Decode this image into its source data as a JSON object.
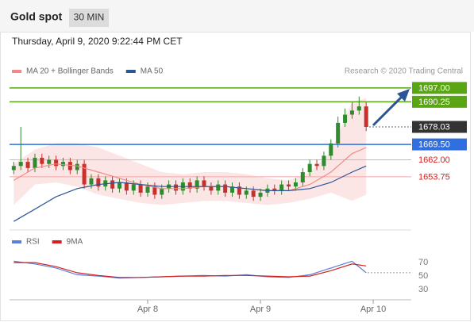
{
  "header": {
    "title": "Gold spot",
    "timeframe": "30 MIN",
    "date": "Thursday, April 9, 2020 9:22:44 PM CET",
    "credit": "Research © 2020 Trading Central"
  },
  "chart_data": [
    {
      "type": "candlestick",
      "up_color": "#2e8b2e",
      "down_color": "#c9302c",
      "x": [
        -28.5,
        -27,
        -25.5,
        -24,
        -22.5,
        -21,
        -19.5,
        -18,
        -16.5,
        -15,
        -13.5,
        -12,
        -10.5,
        -9,
        -7.5,
        -6,
        -4.5,
        -3,
        -1.5,
        0,
        1.5,
        3,
        4.5,
        6,
        7.5,
        9,
        10.5,
        12,
        13.5,
        15,
        16.5,
        18,
        19.5,
        21,
        22.5,
        24,
        25.5,
        27,
        28.5,
        30,
        31.5,
        33,
        34.5,
        36,
        37.5,
        39,
        40.5,
        42,
        43.5,
        45,
        46.5
      ],
      "open": [
        1657,
        1659,
        1661,
        1658,
        1663,
        1660,
        1662,
        1659,
        1661,
        1657,
        1660,
        1650,
        1653,
        1649,
        1652,
        1648,
        1651,
        1647,
        1650,
        1646,
        1649,
        1645,
        1648,
        1650,
        1647,
        1651,
        1648,
        1652,
        1649,
        1647,
        1650,
        1646,
        1649,
        1645,
        1647,
        1644,
        1646,
        1648,
        1647,
        1650,
        1649,
        1651,
        1656,
        1660,
        1659,
        1664,
        1670,
        1680,
        1684,
        1686,
        1688
      ],
      "high": [
        1661,
        1678,
        1663,
        1665,
        1665,
        1664,
        1664,
        1663,
        1663,
        1662,
        1662,
        1655,
        1655,
        1654,
        1654,
        1653,
        1653,
        1652,
        1652,
        1651,
        1651,
        1650,
        1652,
        1652,
        1653,
        1653,
        1654,
        1654,
        1651,
        1652,
        1652,
        1651,
        1651,
        1649,
        1649,
        1648,
        1650,
        1650,
        1652,
        1652,
        1653,
        1658,
        1662,
        1662,
        1666,
        1672,
        1683,
        1687,
        1690,
        1692.8,
        1690
      ],
      "low": [
        1655,
        1657,
        1656,
        1656,
        1658,
        1658,
        1657,
        1657,
        1655,
        1655,
        1648,
        1648,
        1647,
        1647,
        1646,
        1646,
        1645,
        1645,
        1644,
        1644,
        1643,
        1643,
        1646,
        1645,
        1645,
        1646,
        1646,
        1647,
        1645,
        1645,
        1644,
        1644,
        1643,
        1643,
        1642,
        1642,
        1644,
        1645,
        1645,
        1647,
        1647,
        1649,
        1654,
        1657,
        1657,
        1662,
        1668,
        1678,
        1682,
        1684,
        1676
      ],
      "close": [
        1659,
        1661,
        1658,
        1663,
        1660,
        1662,
        1659,
        1661,
        1657,
        1660,
        1650,
        1653,
        1649,
        1652,
        1648,
        1651,
        1647,
        1650,
        1646,
        1649,
        1645,
        1648,
        1650,
        1647,
        1651,
        1648,
        1652,
        1649,
        1647,
        1650,
        1646,
        1649,
        1645,
        1647,
        1644,
        1646,
        1648,
        1647,
        1650,
        1649,
        1651,
        1656,
        1660,
        1659,
        1664,
        1670,
        1680,
        1684,
        1686,
        1688,
        1678.03
      ],
      "series": [
        {
          "name": "MA 20 + Bollinger Bands",
          "color": "#f08a8a",
          "band_color": "#fbdada",
          "x": [
            -28.5,
            -24,
            -19.5,
            -15,
            -10.5,
            -6,
            -1.5,
            3,
            7.5,
            12,
            16.5,
            21,
            25.5,
            30,
            34.5,
            39,
            43.5,
            46.5
          ],
          "values": [
            1652,
            1658,
            1660,
            1659,
            1656,
            1653,
            1650,
            1648,
            1648,
            1649,
            1649,
            1648,
            1647,
            1647,
            1650,
            1656,
            1665,
            1668
          ],
          "upper": [
            1660,
            1667,
            1670,
            1670,
            1668,
            1664,
            1660,
            1656,
            1655,
            1656,
            1656,
            1655,
            1653,
            1652,
            1656,
            1666,
            1690,
            1692
          ],
          "lower": [
            1640,
            1650,
            1651,
            1649,
            1645,
            1643,
            1641,
            1640,
            1641,
            1642,
            1642,
            1641,
            1640,
            1641,
            1643,
            1646,
            1642,
            1645
          ]
        },
        {
          "name": "MA 50",
          "color": "#2a5596",
          "x": [
            -28.5,
            -24,
            -19.5,
            -15,
            -10.5,
            -6,
            -1.5,
            3,
            7.5,
            12,
            16.5,
            21,
            25.5,
            30,
            34.5,
            39,
            43.5,
            46.5
          ],
          "values": [
            1632,
            1638,
            1644,
            1648,
            1650,
            1651,
            1650,
            1649,
            1649,
            1649,
            1649,
            1648,
            1647,
            1647,
            1648,
            1651,
            1656,
            1659
          ]
        }
      ],
      "levels": [
        {
          "value": 1697,
          "label": "1697.00",
          "color": "#5aa514",
          "style": "box",
          "line": "solid"
        },
        {
          "value": 1690.25,
          "label": "1690.25",
          "color": "#5aa514",
          "style": "box",
          "line": "solid"
        },
        {
          "value": 1678.03,
          "label": "1678.03",
          "color": "#333333",
          "style": "box",
          "line": "dotted"
        },
        {
          "value": 1669.5,
          "label": "1669.50",
          "color": "#2f6fe0",
          "style": "box",
          "line": "solid"
        },
        {
          "value": 1662,
          "label": "1662.00",
          "color": "#d42020",
          "style": "text",
          "line": "solid"
        },
        {
          "value": 1653.75,
          "label": "1653.75",
          "color": "#d42020",
          "style": "text",
          "line": "solid"
        }
      ],
      "xlim": [
        -29.4,
        56.1
      ],
      "ylim": [
        1628.6,
        1701.2
      ]
    },
    {
      "type": "line",
      "series": [
        {
          "name": "RSI",
          "color": "#5b7fd6",
          "x": [
            -28.5,
            -24,
            -19.5,
            -15,
            -10.5,
            -6,
            -1.5,
            3,
            7.5,
            12,
            16.5,
            21,
            25.5,
            30,
            34.5,
            39,
            43.5,
            46.5
          ],
          "values": [
            72,
            68,
            62,
            52,
            50,
            47,
            48,
            49,
            50,
            51,
            50,
            52,
            49,
            48,
            52,
            62,
            72,
            55
          ]
        },
        {
          "name": "9MA",
          "color": "#d42020",
          "x": [
            -28.5,
            -24,
            -19.5,
            -15,
            -10.5,
            -6,
            -1.5,
            3,
            7.5,
            12,
            16.5,
            21,
            25.5,
            30,
            34.5,
            39,
            43.5,
            46.5
          ],
          "values": [
            70,
            70,
            64,
            55,
            51,
            48,
            48,
            49,
            50,
            50,
            51,
            51,
            50,
            49,
            50,
            58,
            68,
            65
          ]
        }
      ],
      "xlim": [
        -29.4,
        56.1
      ],
      "ylim": [
        15,
        90
      ],
      "yticks": [
        70,
        50,
        30
      ],
      "xticks": [
        {
          "value": 0,
          "label": "Apr 8"
        },
        {
          "value": 24,
          "label": "Apr 9"
        },
        {
          "value": 48,
          "label": "Apr 10"
        }
      ]
    }
  ]
}
